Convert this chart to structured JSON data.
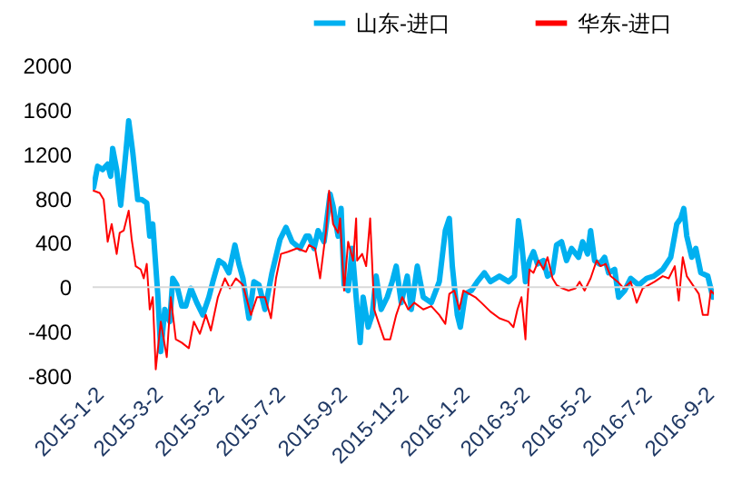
{
  "chart_data": {
    "type": "line",
    "legend": "top",
    "ylim": [
      -800,
      2000
    ],
    "yticks": [
      -800,
      -400,
      0,
      400,
      800,
      1200,
      1600,
      2000
    ],
    "xlim": [
      "2015-01-02",
      "2016-09-13"
    ],
    "xticks": [
      {
        "value": "2015-01-02",
        "label": "2015-1-2"
      },
      {
        "value": "2015-03-02",
        "label": "2015-3-2"
      },
      {
        "value": "2015-05-02",
        "label": "2015-5-2"
      },
      {
        "value": "2015-07-02",
        "label": "2015-7-2"
      },
      {
        "value": "2015-09-02",
        "label": "2015-9-2"
      },
      {
        "value": "2015-11-02",
        "label": "2015-11-2"
      },
      {
        "value": "2016-01-02",
        "label": "2016-1-2"
      },
      {
        "value": "2016-03-02",
        "label": "2016-3-2"
      },
      {
        "value": "2016-05-02",
        "label": "2016-5-2"
      },
      {
        "value": "2016-07-02",
        "label": "2016-7-2"
      },
      {
        "value": "2016-09-02",
        "label": "2016-9-2"
      }
    ],
    "ref_lines": [
      {
        "axis": "y",
        "value": 0,
        "color": "#d9d9d9"
      }
    ],
    "series": [
      {
        "name": "山东-进口",
        "color": "#00b0f0",
        "x": [
          "2015-01-03",
          "2015-01-07",
          "2015-01-12",
          "2015-01-17",
          "2015-01-20",
          "2015-01-22",
          "2015-01-26",
          "2015-01-30",
          "2015-02-04",
          "2015-02-07",
          "2015-02-11",
          "2015-02-16",
          "2015-02-20",
          "2015-02-25",
          "2015-02-28",
          "2015-03-03",
          "2015-03-08",
          "2015-03-11",
          "2015-03-15",
          "2015-03-20",
          "2015-03-23",
          "2015-03-27",
          "2015-04-01",
          "2015-04-05",
          "2015-04-10",
          "2015-04-16",
          "2015-04-22",
          "2015-04-28",
          "2015-05-02",
          "2015-05-08",
          "2015-05-13",
          "2015-05-18",
          "2015-05-24",
          "2015-05-28",
          "2015-06-01",
          "2015-06-07",
          "2015-06-12",
          "2015-06-17",
          "2015-06-23",
          "2015-06-30",
          "2015-07-08",
          "2015-07-14",
          "2015-07-20",
          "2015-07-28",
          "2015-08-03",
          "2015-08-06",
          "2015-08-11",
          "2015-08-15",
          "2015-08-21",
          "2015-08-27",
          "2015-08-30",
          "2015-09-04",
          "2015-09-07",
          "2015-09-10",
          "2015-09-14",
          "2015-09-18",
          "2015-09-22",
          "2015-09-26",
          "2015-09-29",
          "2015-10-04",
          "2015-10-08",
          "2015-10-12",
          "2015-10-17",
          "2015-10-23",
          "2015-10-28",
          "2015-11-01",
          "2015-11-06",
          "2015-11-12",
          "2015-11-16",
          "2015-11-22",
          "2015-11-28",
          "2015-12-06",
          "2015-12-14",
          "2015-12-20",
          "2015-12-24",
          "2015-12-27",
          "2016-01-01",
          "2016-01-04",
          "2016-01-09",
          "2016-01-15",
          "2016-01-21",
          "2016-01-28",
          "2016-02-03",
          "2016-02-12",
          "2016-02-21",
          "2016-02-27",
          "2016-03-02",
          "2016-03-05",
          "2016-03-09",
          "2016-03-13",
          "2016-03-17",
          "2016-03-21",
          "2016-03-27",
          "2016-03-31",
          "2016-04-05",
          "2016-04-09",
          "2016-04-14",
          "2016-04-19",
          "2016-04-24",
          "2016-05-01",
          "2016-05-05",
          "2016-05-10",
          "2016-05-13",
          "2016-05-17",
          "2016-05-22",
          "2016-05-27",
          "2016-05-31",
          "2016-06-06",
          "2016-06-10",
          "2016-06-16",
          "2016-06-22",
          "2016-06-30",
          "2016-07-08",
          "2016-07-15",
          "2016-07-24",
          "2016-08-01",
          "2016-08-07",
          "2016-08-11",
          "2016-08-14",
          "2016-08-17",
          "2016-08-22",
          "2016-08-26",
          "2016-08-31",
          "2016-09-07",
          "2016-09-12"
        ],
        "values": [
          900,
          1090,
          1060,
          1110,
          1000,
          1250,
          1060,
          740,
          1200,
          1500,
          1220,
          790,
          790,
          760,
          460,
          570,
          -60,
          -580,
          -200,
          -310,
          80,
          20,
          -170,
          -170,
          -10,
          -140,
          -250,
          -90,
          50,
          240,
          210,
          130,
          380,
          210,
          80,
          -280,
          50,
          20,
          -200,
          130,
          430,
          540,
          410,
          350,
          460,
          460,
          350,
          510,
          410,
          840,
          730,
          460,
          710,
          20,
          -30,
          350,
          -90,
          -500,
          -90,
          -360,
          -250,
          100,
          -200,
          -90,
          50,
          190,
          -140,
          100,
          -200,
          190,
          -90,
          -140,
          50,
          510,
          620,
          190,
          -250,
          -360,
          -60,
          -30,
          50,
          130,
          50,
          100,
          50,
          100,
          600,
          410,
          50,
          240,
          320,
          210,
          240,
          100,
          130,
          380,
          410,
          240,
          350,
          270,
          410,
          300,
          510,
          240,
          210,
          270,
          130,
          160,
          -90,
          -30,
          80,
          20,
          80,
          100,
          160,
          270,
          570,
          620,
          710,
          460,
          270,
          350,
          130,
          100,
          -90
        ]
      },
      {
        "name": "华东-进口",
        "color": "#ff0000",
        "x": [
          "2015-01-03",
          "2015-01-09",
          "2015-01-13",
          "2015-01-17",
          "2015-01-21",
          "2015-01-26",
          "2015-01-29",
          "2015-02-02",
          "2015-02-07",
          "2015-02-10",
          "2015-02-14",
          "2015-02-19",
          "2015-02-22",
          "2015-02-25",
          "2015-02-28",
          "2015-03-03",
          "2015-03-06",
          "2015-03-11",
          "2015-03-17",
          "2015-03-21",
          "2015-03-26",
          "2015-04-01",
          "2015-04-08",
          "2015-04-13",
          "2015-04-19",
          "2015-04-25",
          "2015-04-30",
          "2015-05-07",
          "2015-05-14",
          "2015-05-19",
          "2015-05-25",
          "2015-06-01",
          "2015-06-09",
          "2015-06-15",
          "2015-06-23",
          "2015-06-29",
          "2015-07-04",
          "2015-07-09",
          "2015-07-16",
          "2015-07-25",
          "2015-08-03",
          "2015-08-06",
          "2015-08-12",
          "2015-08-17",
          "2015-08-23",
          "2015-08-26",
          "2015-08-30",
          "2015-09-04",
          "2015-09-06",
          "2015-09-10",
          "2015-09-14",
          "2015-09-19",
          "2015-09-22",
          "2015-09-23",
          "2015-09-28",
          "2015-10-02",
          "2015-10-06",
          "2015-10-10",
          "2015-10-14",
          "2015-10-20",
          "2015-10-26",
          "2015-11-01",
          "2015-11-07",
          "2015-11-13",
          "2015-11-19",
          "2015-11-28",
          "2015-12-06",
          "2015-12-14",
          "2015-12-20",
          "2015-12-24",
          "2015-12-29",
          "2016-01-03",
          "2016-01-07",
          "2016-01-13",
          "2016-01-19",
          "2016-01-25",
          "2016-02-03",
          "2016-02-12",
          "2016-02-21",
          "2016-02-26",
          "2016-03-01",
          "2016-03-05",
          "2016-03-09",
          "2016-03-10",
          "2016-03-13",
          "2016-03-17",
          "2016-03-22",
          "2016-03-27",
          "2016-03-31",
          "2016-04-05",
          "2016-04-09",
          "2016-04-15",
          "2016-04-21",
          "2016-04-28",
          "2016-05-02",
          "2016-05-07",
          "2016-05-13",
          "2016-05-19",
          "2016-05-23",
          "2016-05-28",
          "2016-06-02",
          "2016-06-09",
          "2016-06-15",
          "2016-06-22",
          "2016-06-28",
          "2016-07-04",
          "2016-07-10",
          "2016-07-16",
          "2016-07-24",
          "2016-07-30",
          "2016-08-05",
          "2016-08-09",
          "2016-08-13",
          "2016-08-17",
          "2016-08-23",
          "2016-08-29",
          "2016-09-02",
          "2016-09-07",
          "2016-09-10",
          "2016-09-13"
        ],
        "values": [
          870,
          850,
          790,
          410,
          570,
          300,
          490,
          510,
          690,
          430,
          190,
          160,
          80,
          210,
          -200,
          -90,
          -740,
          -310,
          -630,
          -90,
          -470,
          -500,
          -550,
          -310,
          -420,
          -250,
          -390,
          -90,
          80,
          -10,
          80,
          20,
          -250,
          -90,
          -90,
          -280,
          80,
          300,
          320,
          350,
          320,
          380,
          350,
          80,
          510,
          870,
          570,
          490,
          620,
          -30,
          410,
          240,
          620,
          240,
          300,
          190,
          620,
          -200,
          -310,
          -470,
          -470,
          -250,
          -90,
          -200,
          -140,
          -200,
          -170,
          -250,
          -330,
          -60,
          -30,
          -200,
          -30,
          -60,
          -90,
          -140,
          -220,
          -280,
          -310,
          -360,
          -200,
          -90,
          -470,
          -250,
          160,
          130,
          240,
          160,
          270,
          80,
          20,
          -10,
          -30,
          -10,
          50,
          -30,
          80,
          240,
          190,
          210,
          100,
          50,
          -10,
          50,
          -140,
          -10,
          20,
          50,
          100,
          80,
          190,
          -120,
          270,
          100,
          20,
          -60,
          -250,
          -250,
          -30,
          -60
        ]
      }
    ]
  }
}
